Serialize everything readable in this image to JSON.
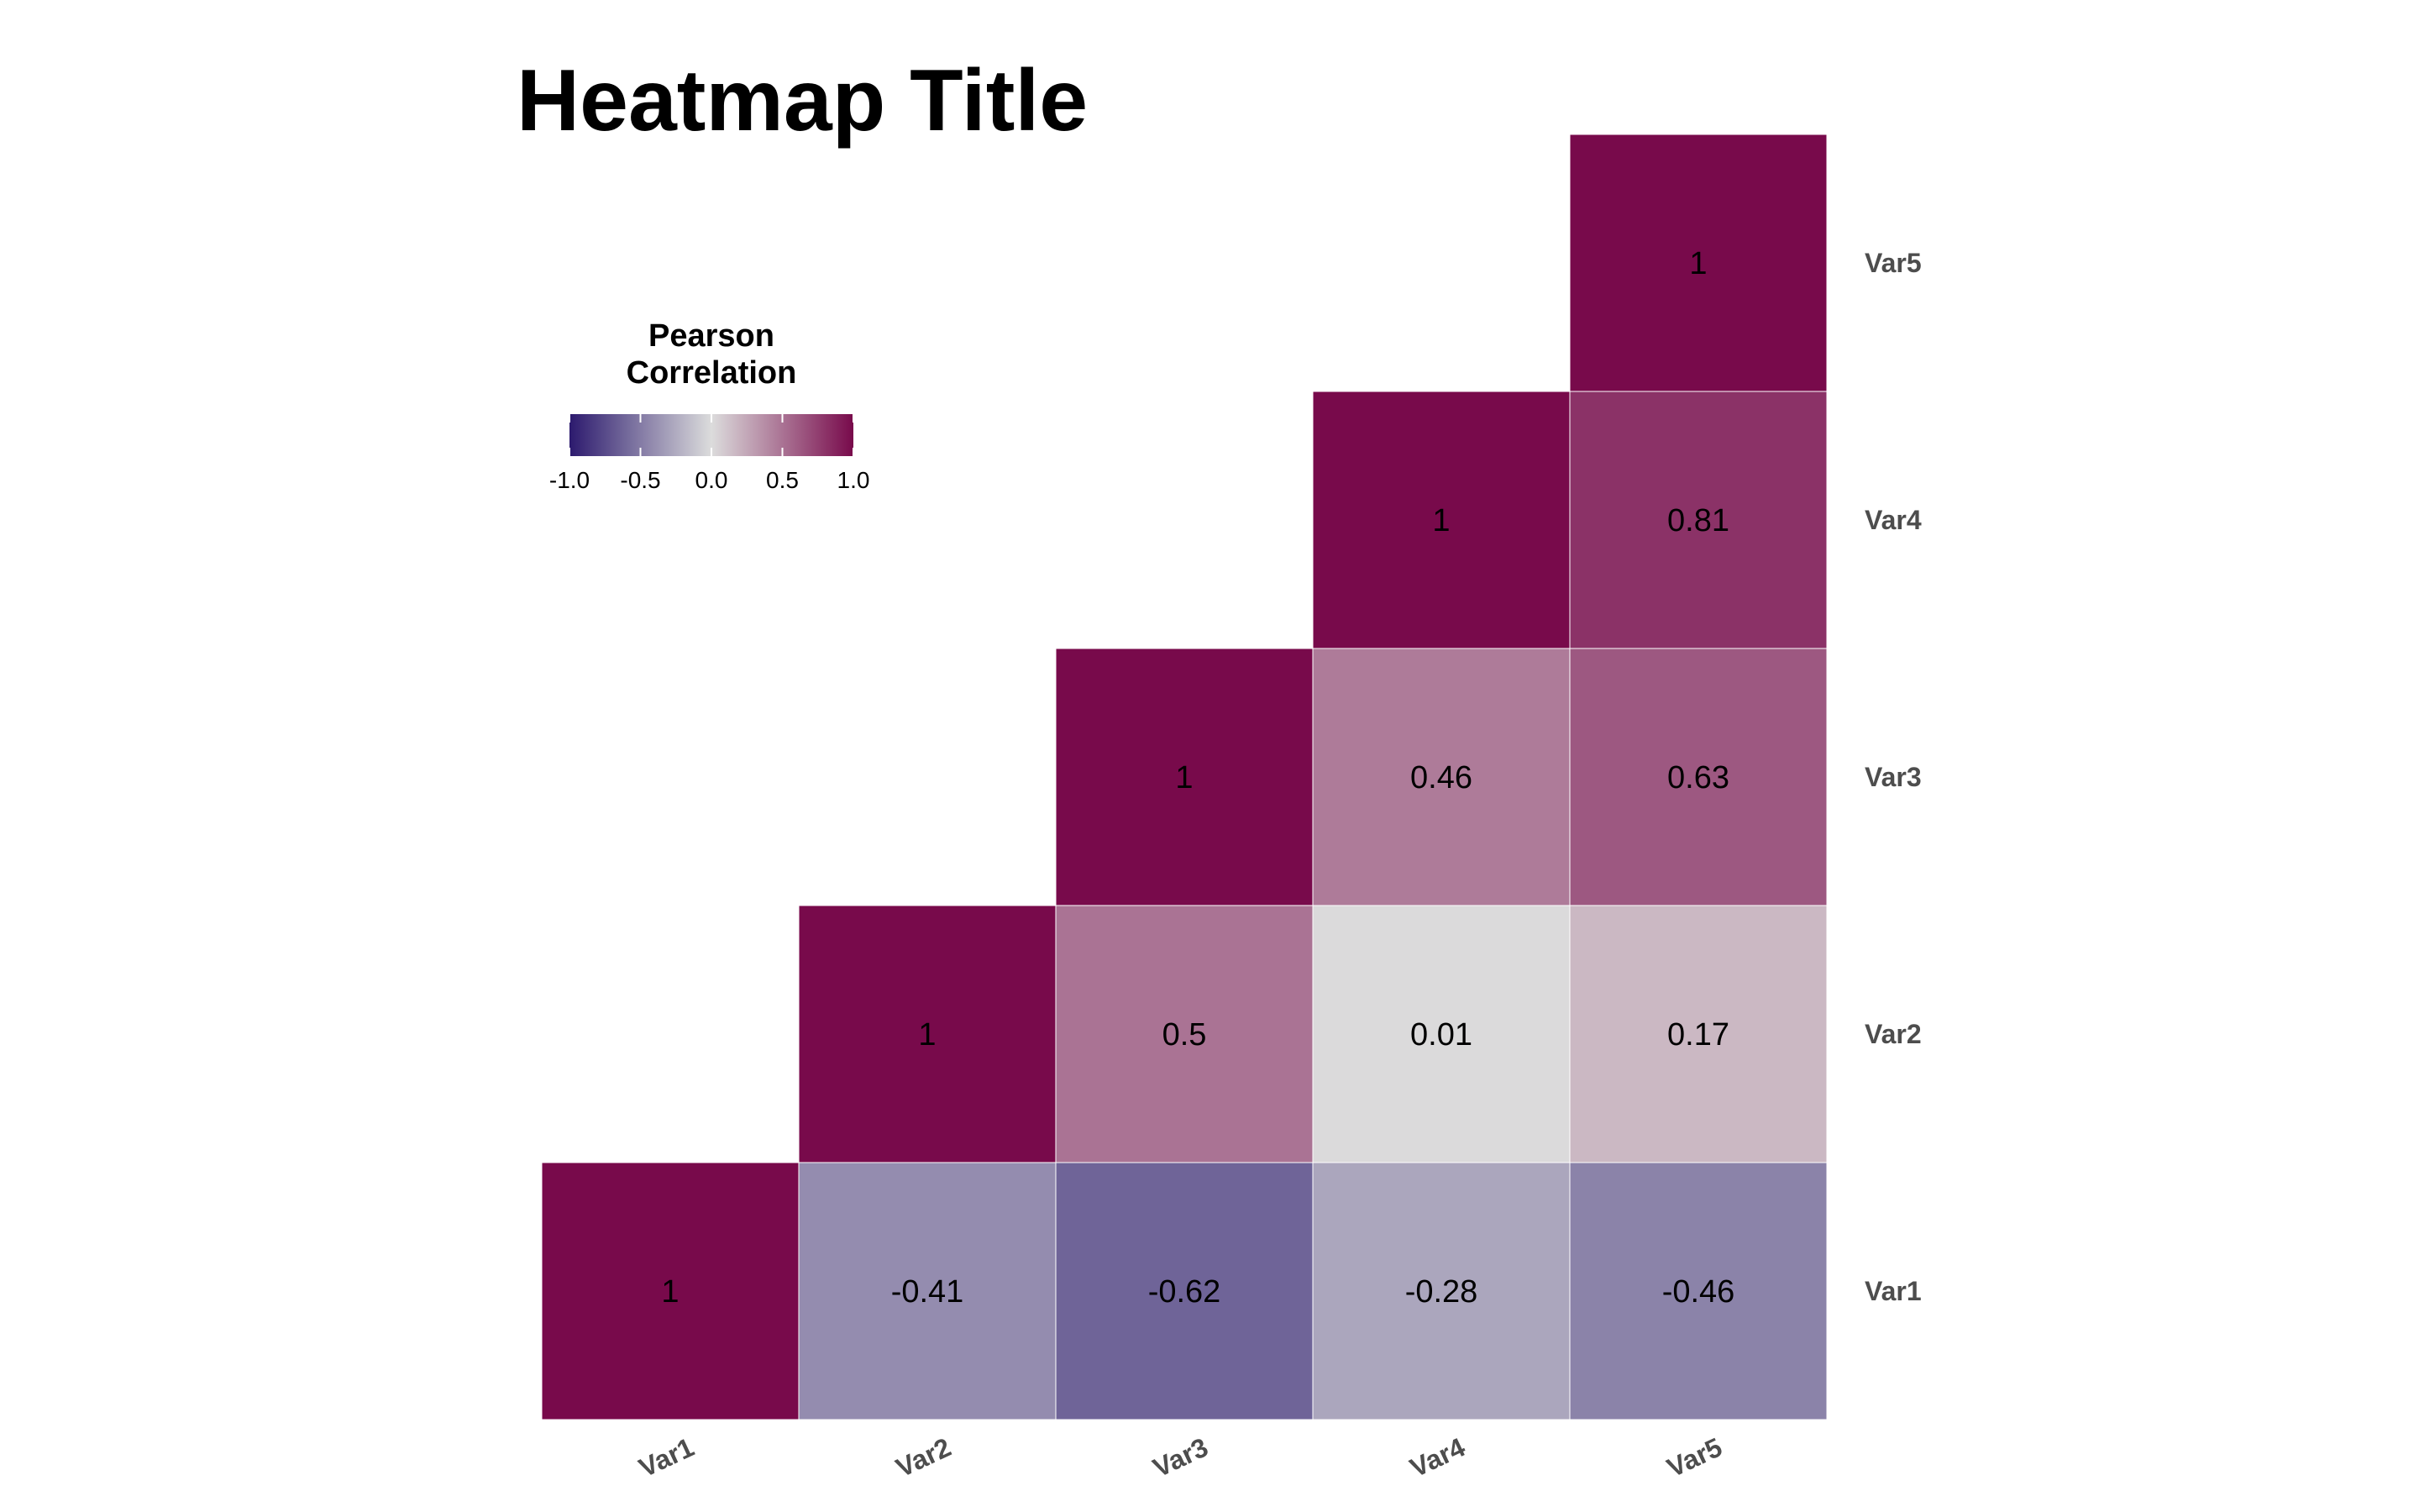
{
  "chart_data": {
    "type": "heatmap",
    "title": "Heatmap Title",
    "variables": [
      "Var1",
      "Var2",
      "Var3",
      "Var4",
      "Var5"
    ],
    "cells": [
      {
        "x": "Var1",
        "y": "Var1",
        "value": 1,
        "label": "1"
      },
      {
        "x": "Var2",
        "y": "Var1",
        "value": -0.41,
        "label": "-0.41"
      },
      {
        "x": "Var3",
        "y": "Var1",
        "value": -0.62,
        "label": "-0.62"
      },
      {
        "x": "Var4",
        "y": "Var1",
        "value": -0.28,
        "label": "-0.28"
      },
      {
        "x": "Var5",
        "y": "Var1",
        "value": -0.46,
        "label": "-0.46"
      },
      {
        "x": "Var2",
        "y": "Var2",
        "value": 1,
        "label": "1"
      },
      {
        "x": "Var3",
        "y": "Var2",
        "value": 0.5,
        "label": "0.5"
      },
      {
        "x": "Var4",
        "y": "Var2",
        "value": 0.01,
        "label": "0.01"
      },
      {
        "x": "Var5",
        "y": "Var2",
        "value": 0.17,
        "label": "0.17"
      },
      {
        "x": "Var3",
        "y": "Var3",
        "value": 1,
        "label": "1"
      },
      {
        "x": "Var4",
        "y": "Var3",
        "value": 0.46,
        "label": "0.46"
      },
      {
        "x": "Var5",
        "y": "Var3",
        "value": 0.63,
        "label": "0.63"
      },
      {
        "x": "Var4",
        "y": "Var4",
        "value": 1,
        "label": "1"
      },
      {
        "x": "Var5",
        "y": "Var4",
        "value": 0.81,
        "label": "0.81"
      },
      {
        "x": "Var5",
        "y": "Var5",
        "value": 1,
        "label": "1"
      }
    ],
    "legend": {
      "title_lines": [
        "Pearson",
        "Correlation"
      ],
      "ticks": [
        {
          "value": -1,
          "label": "-1.0"
        },
        {
          "value": -0.5,
          "label": "-0.5"
        },
        {
          "value": 0,
          "label": "0.0"
        },
        {
          "value": 0.5,
          "label": "0.5"
        },
        {
          "value": 1,
          "label": "1.0"
        }
      ],
      "limits": [
        -1,
        1
      ],
      "position": "top-left"
    },
    "color_scale": {
      "low": "#2c1a6e",
      "mid": "#dcdcdc",
      "high": "#780a4b"
    },
    "y_axis_position": "right",
    "x_label_rotation": "angled"
  }
}
